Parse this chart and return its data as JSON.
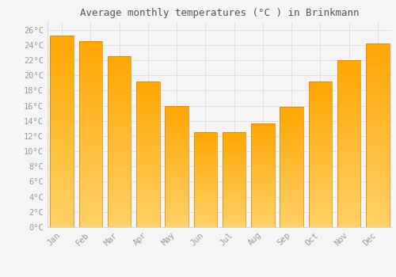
{
  "title": "Average monthly temperatures (°C ) in Brinkmann",
  "months": [
    "Jan",
    "Feb",
    "Mar",
    "Apr",
    "May",
    "Jun",
    "Jul",
    "Aug",
    "Sep",
    "Oct",
    "Nov",
    "Dec"
  ],
  "values": [
    25.2,
    24.5,
    22.5,
    19.2,
    16.0,
    12.5,
    12.5,
    13.7,
    15.8,
    19.2,
    22.0,
    24.2
  ],
  "bar_color_top": "#FFA500",
  "bar_color_bottom": "#FFD080",
  "bar_edge_color": "#E08000",
  "ylim": [
    0,
    27
  ],
  "background_color": "#f5f5f5",
  "grid_color": "#dddddd",
  "title_fontsize": 9,
  "tick_fontsize": 7.5,
  "tick_color": "#999999",
  "title_color": "#555555"
}
